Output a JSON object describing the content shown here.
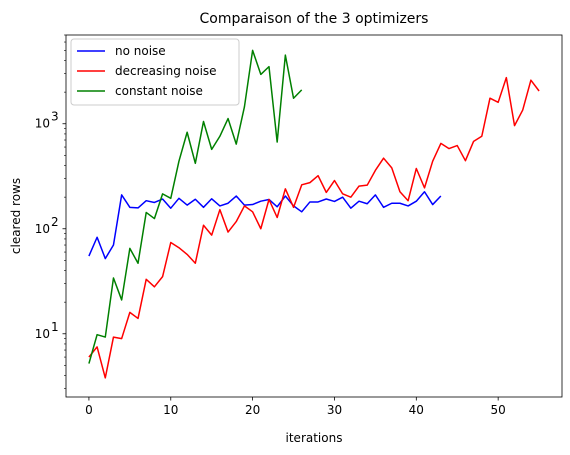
{
  "chart_data": {
    "type": "line",
    "title": "Comparaison of the 3 optimizers",
    "xlabel": "iterations",
    "ylabel": "cleared rows",
    "yscale": "log",
    "xlim": [
      -2.8,
      57.8
    ],
    "ylim": [
      2.5,
      7000
    ],
    "xticks": [
      0,
      10,
      20,
      30,
      40,
      50
    ],
    "xtick_labels": [
      "0",
      "10",
      "20",
      "30",
      "40",
      "50"
    ],
    "yticks": [
      10,
      100,
      1000
    ],
    "ytick_labels": [
      "10",
      "10",
      "10"
    ],
    "ytick_exponents": [
      "1",
      "2",
      "3"
    ],
    "grid": false,
    "legend_position": "upper-left",
    "series": [
      {
        "name": "no noise",
        "color": "#0000ff",
        "x": [
          0,
          1,
          2,
          3,
          4,
          5,
          6,
          7,
          8,
          9,
          10,
          11,
          12,
          13,
          14,
          15,
          16,
          17,
          18,
          19,
          20,
          21,
          22,
          23,
          24,
          25,
          26,
          27,
          28,
          29,
          30,
          31,
          32,
          33,
          34,
          35,
          36,
          37,
          38,
          39,
          40,
          41,
          42,
          43
        ],
        "y": [
          55,
          83,
          52,
          70,
          210,
          160,
          158,
          185,
          178,
          192,
          157,
          195,
          168,
          191,
          160,
          193,
          165,
          175,
          205,
          168,
          170,
          183,
          190,
          162,
          205,
          165,
          145,
          180,
          180,
          192,
          182,
          200,
          157,
          183,
          173,
          210,
          160,
          175,
          175,
          165,
          183,
          225,
          170,
          205
        ]
      },
      {
        "name": "decreasing noise",
        "color": "#ff0000",
        "x": [
          0,
          1,
          2,
          3,
          4,
          5,
          6,
          7,
          8,
          9,
          10,
          11,
          12,
          13,
          14,
          15,
          16,
          17,
          18,
          19,
          20,
          21,
          22,
          23,
          24,
          25,
          26,
          27,
          28,
          29,
          30,
          31,
          32,
          33,
          34,
          35,
          36,
          37,
          38,
          39,
          40,
          41,
          42,
          43,
          44,
          45,
          46,
          47,
          48,
          49,
          50,
          51,
          52,
          53,
          54,
          55
        ],
        "y": [
          6,
          7.5,
          3.8,
          9.3,
          9,
          16,
          14,
          33,
          28,
          35,
          74,
          66,
          57,
          47,
          108,
          87,
          152,
          93,
          117,
          165,
          145,
          100,
          190,
          128,
          240,
          160,
          262,
          275,
          320,
          222,
          288,
          215,
          200,
          255,
          260,
          360,
          470,
          380,
          225,
          185,
          375,
          245,
          440,
          650,
          580,
          620,
          445,
          680,
          760,
          1750,
          1600,
          2750,
          960,
          1350,
          2600,
          2050
        ]
      },
      {
        "name": "constant noise",
        "color": "#008000",
        "x": [
          0,
          1,
          2,
          3,
          4,
          5,
          6,
          7,
          8,
          9,
          10,
          11,
          12,
          13,
          14,
          15,
          16,
          17,
          18,
          19,
          20,
          21,
          22,
          23,
          24,
          25,
          26
        ],
        "y": [
          5.2,
          9.8,
          9.3,
          34,
          21,
          65,
          47,
          143,
          125,
          215,
          195,
          440,
          830,
          420,
          1050,
          570,
          760,
          1120,
          640,
          1450,
          5000,
          2950,
          3500,
          670,
          4500,
          1750,
          2100
        ]
      }
    ]
  }
}
